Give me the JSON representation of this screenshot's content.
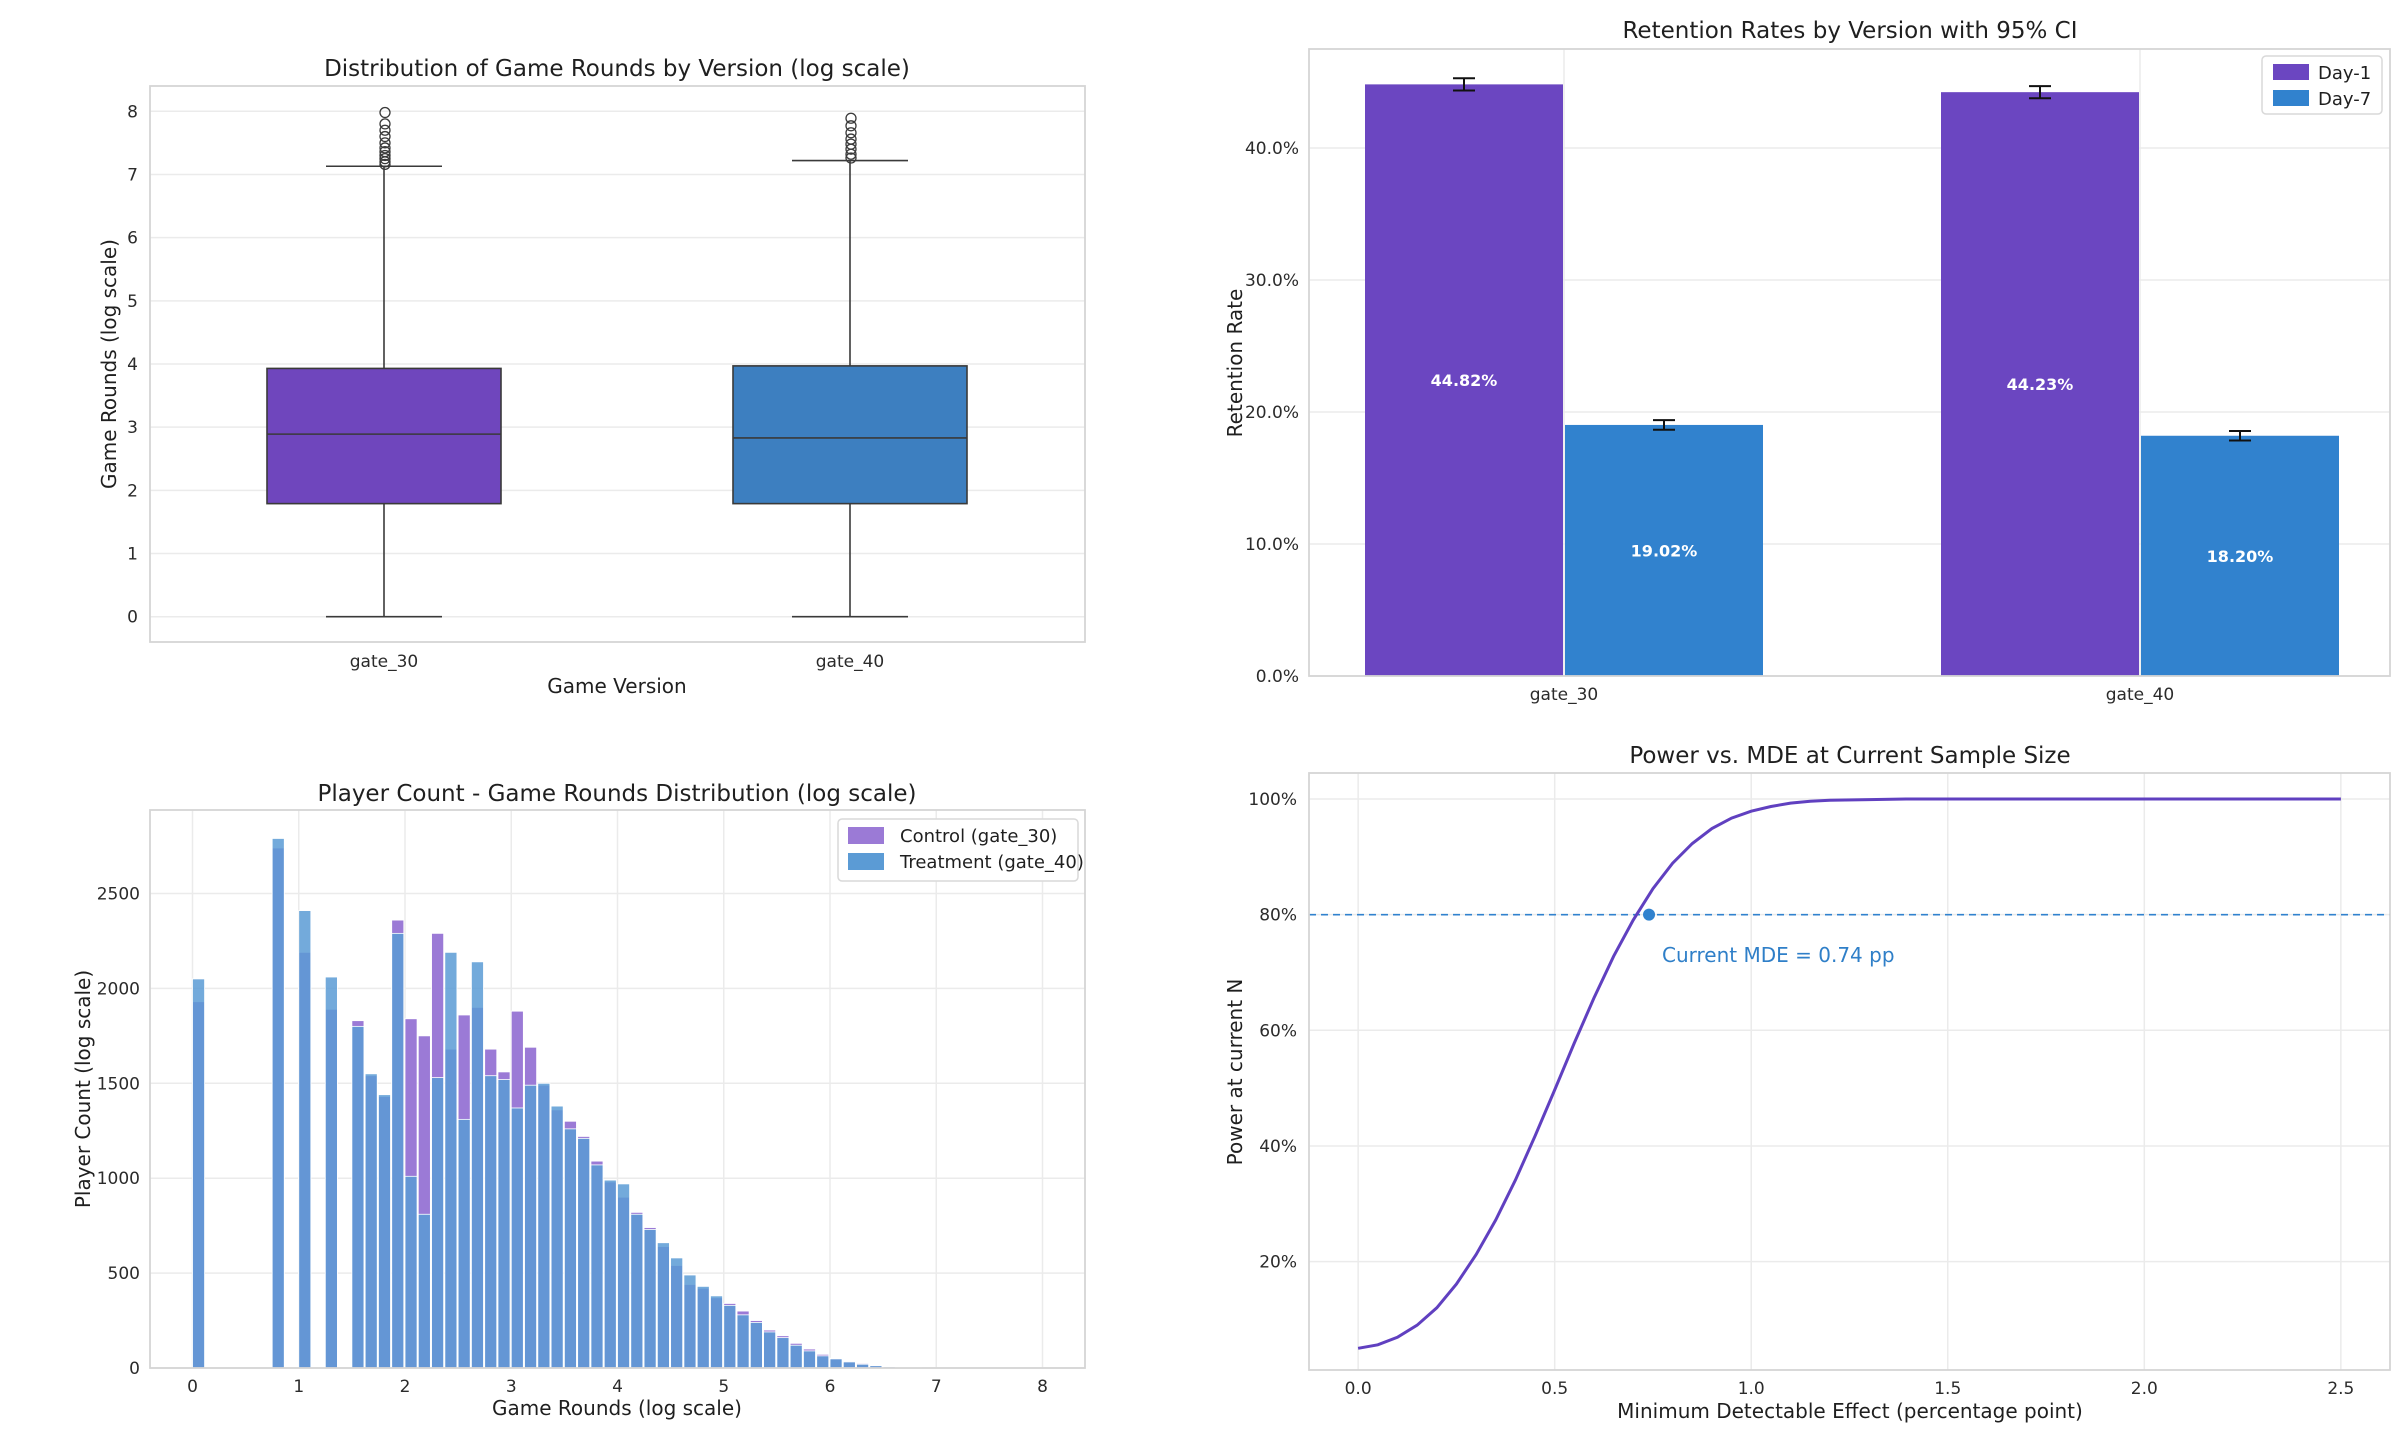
{
  "chart_data": [
    {
      "type": "box",
      "title": "Distribution of Game Rounds by Version (log scale)",
      "xlabel": "Game Version",
      "ylabel": "Game Rounds (log scale)",
      "categories": [
        "gate_30",
        "gate_40"
      ],
      "ylim": [
        -0.4,
        8.4
      ],
      "yticks": [
        0,
        1,
        2,
        3,
        4,
        5,
        6,
        7,
        8
      ],
      "boxes": [
        {
          "name": "gate_30",
          "color": "#6f46bd",
          "min": 0,
          "q1": 1.79,
          "median": 2.89,
          "q3": 3.93,
          "max": 7.13,
          "outliers": [
            7.16,
            7.2,
            7.25,
            7.3,
            7.36,
            7.42,
            7.5,
            7.6,
            7.7,
            7.8,
            7.98
          ]
        },
        {
          "name": "gate_40",
          "color": "#3d7fc0",
          "min": 0,
          "q1": 1.79,
          "median": 2.83,
          "q3": 3.97,
          "max": 7.22,
          "outliers": [
            7.26,
            7.32,
            7.4,
            7.48,
            7.56,
            7.66,
            7.77,
            7.89
          ]
        }
      ],
      "grid": true
    },
    {
      "type": "bar",
      "title": "Retention Rates by Version with 95% CI",
      "xlabel": "",
      "ylabel": "Retention Rate",
      "categories": [
        "gate_30",
        "gate_40"
      ],
      "ylim": [
        0,
        0.475
      ],
      "yticks": [
        0,
        0.1,
        0.2,
        0.3,
        0.4
      ],
      "ytick_labels": [
        "0.0%",
        "10.0%",
        "20.0%",
        "30.0%",
        "40.0%"
      ],
      "series": [
        {
          "name": "Day-1",
          "color": "#6b46c1",
          "values": [
            0.4482,
            0.4423
          ],
          "ci_half": [
            0.0046,
            0.0046
          ],
          "labels": [
            "44.82%",
            "44.23%"
          ]
        },
        {
          "name": "Day-7",
          "color": "#3182ce",
          "values": [
            0.1902,
            0.182
          ],
          "ci_half": [
            0.0036,
            0.0036
          ],
          "labels": [
            "19.02%",
            "18.20%"
          ]
        }
      ],
      "legend": "top-right",
      "grid": true
    },
    {
      "type": "histogram",
      "title": "Player Count - Game Rounds Distribution (log scale)",
      "xlabel": "Game Rounds (log scale)",
      "ylabel": "Player Count (log scale)",
      "xlim": [
        -0.4,
        8.4
      ],
      "ylim": [
        0,
        2940
      ],
      "xticks": [
        0,
        1,
        2,
        3,
        4,
        5,
        6,
        7,
        8
      ],
      "yticks": [
        0,
        500,
        1000,
        1500,
        2000,
        2500
      ],
      "bin_width": 0.125,
      "bin_start": 0,
      "series": [
        {
          "name": "Control (gate_30)",
          "color": "#9b7ad6",
          "counts": [
            1930,
            0,
            0,
            0,
            0,
            0,
            2740,
            0,
            2190,
            0,
            1890,
            0,
            1830,
            1540,
            1430,
            2360,
            1840,
            1750,
            2290,
            1680,
            1860,
            1900,
            1680,
            1560,
            1880,
            1690,
            1490,
            1360,
            1300,
            1220,
            1090,
            980,
            900,
            820,
            740,
            640,
            540,
            440,
            420,
            370,
            340,
            300,
            250,
            200,
            170,
            130,
            100,
            72,
            52,
            36,
            24,
            14,
            8,
            4,
            2,
            1,
            0,
            0,
            0,
            0,
            0,
            0,
            0,
            0,
            0
          ]
        },
        {
          "name": "Treatment (gate_40)",
          "color": "#5b9bd5",
          "counts": [
            2050,
            0,
            0,
            0,
            0,
            0,
            2790,
            0,
            2410,
            0,
            2060,
            0,
            1800,
            1550,
            1440,
            2290,
            1010,
            810,
            1530,
            2190,
            1310,
            2140,
            1540,
            1520,
            1370,
            1490,
            1500,
            1380,
            1260,
            1210,
            1070,
            990,
            970,
            810,
            730,
            660,
            580,
            490,
            430,
            380,
            330,
            280,
            240,
            190,
            160,
            120,
            90,
            64,
            48,
            32,
            20,
            12,
            6,
            3,
            2,
            1,
            0,
            0,
            0,
            0,
            0,
            0,
            0,
            0,
            0
          ]
        }
      ],
      "legend": "top-right",
      "grid": true
    },
    {
      "type": "line",
      "title": "Power vs. MDE at Current Sample Size",
      "xlabel": "Minimum Detectable Effect (percentage point)",
      "ylabel": "Power at current N",
      "xlim": [
        -0.125,
        2.625
      ],
      "ylim": [
        0.0125,
        1.045
      ],
      "xticks": [
        0,
        0.5,
        1.0,
        1.5,
        2.0,
        2.5
      ],
      "xtick_labels": [
        "0.0",
        "0.5",
        "1.0",
        "1.5",
        "2.0",
        "2.5"
      ],
      "yticks": [
        0.2,
        0.4,
        0.6,
        0.8,
        1.0
      ],
      "ytick_labels": [
        "20%",
        "40%",
        "60%",
        "80%",
        "100%"
      ],
      "series": [
        {
          "name": "power",
          "color": "#6040c0",
          "x": [
            0.0,
            0.05,
            0.1,
            0.15,
            0.2,
            0.25,
            0.3,
            0.35,
            0.4,
            0.45,
            0.5,
            0.55,
            0.6,
            0.65,
            0.7,
            0.75,
            0.8,
            0.85,
            0.9,
            0.95,
            1.0,
            1.05,
            1.1,
            1.15,
            1.2,
            1.3,
            1.4,
            1.5,
            1.6,
            1.8,
            2.0,
            2.2,
            2.5
          ],
          "y": [
            0.05,
            0.056,
            0.069,
            0.09,
            0.12,
            0.161,
            0.212,
            0.272,
            0.341,
            0.417,
            0.497,
            0.578,
            0.656,
            0.728,
            0.791,
            0.845,
            0.889,
            0.923,
            0.949,
            0.967,
            0.979,
            0.987,
            0.993,
            0.996,
            0.998,
            0.999,
            1.0,
            1.0,
            1.0,
            1.0,
            1.0,
            1.0,
            1.0
          ]
        }
      ],
      "hline": {
        "y": 0.8,
        "color": "#3182ce"
      },
      "marker": {
        "x": 0.74,
        "y": 0.8,
        "color": "#3182ce"
      },
      "annotation": "Current MDE = 0.74 pp",
      "grid": true
    }
  ]
}
